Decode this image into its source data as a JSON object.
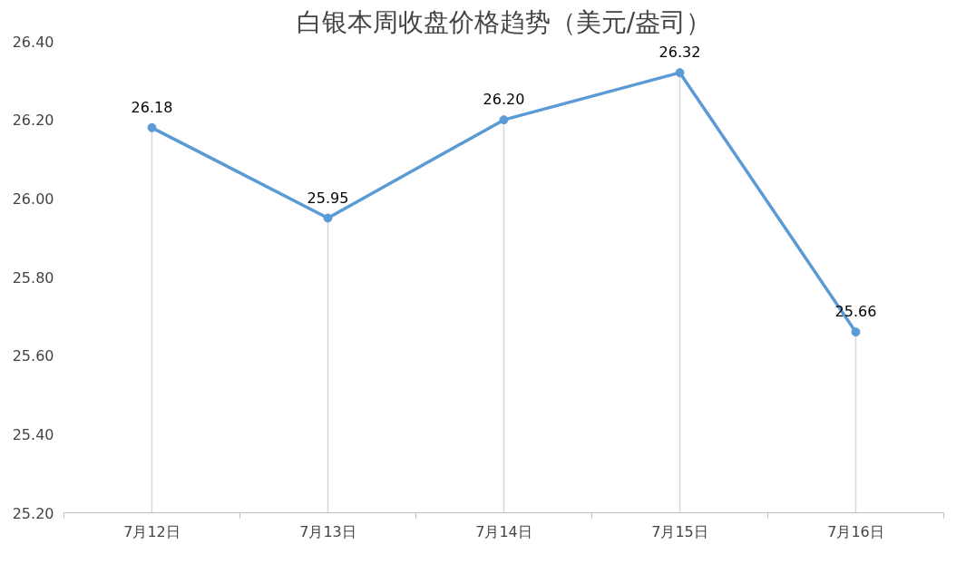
{
  "chart_data": {
    "type": "line",
    "title": "白银本周收盘价格趋势（美元/盎司）",
    "categories": [
      "7月12日",
      "7月13日",
      "7月14日",
      "7月15日",
      "7月16日"
    ],
    "series": [
      {
        "color": "#5b9bd5",
        "values": [
          26.18,
          25.95,
          26.2,
          26.32,
          25.66
        ],
        "value_labels": [
          "26.18",
          "25.95",
          "26.20",
          "26.32",
          "25.66"
        ]
      }
    ],
    "ylim": [
      25.2,
      26.4
    ],
    "yticks": [
      {
        "value": 25.2,
        "label": "25.20"
      },
      {
        "value": 25.4,
        "label": "25.40"
      },
      {
        "value": 25.6,
        "label": "25.60"
      },
      {
        "value": 25.8,
        "label": "25.80"
      },
      {
        "value": 26.0,
        "label": "26.00"
      },
      {
        "value": 26.2,
        "label": "26.20"
      },
      {
        "value": 26.4,
        "label": "26.40"
      }
    ],
    "marker": "circle",
    "line_style": "solid",
    "grid": "x"
  }
}
